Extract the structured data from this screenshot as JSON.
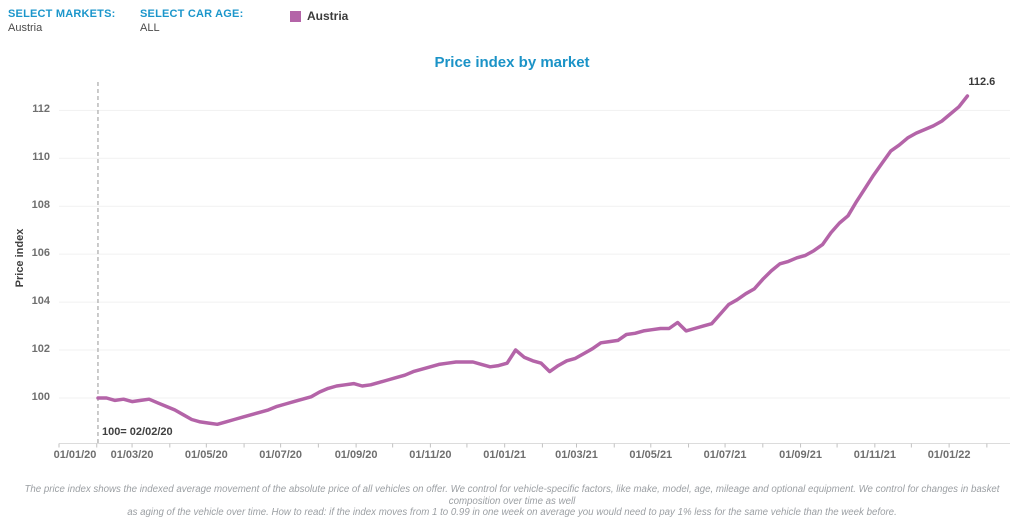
{
  "filters": {
    "markets_label": "SELECT MARKETS:",
    "markets_value": "Austria",
    "car_age_label": "SELECT CAR AGE:",
    "car_age_value": "ALL"
  },
  "legend": {
    "position": "top",
    "items": [
      {
        "label": "Austria",
        "color": "#b464a8"
      }
    ]
  },
  "chart_data": {
    "type": "line",
    "title": "Price index by market",
    "xlabel": "",
    "ylabel": "Price index",
    "grid": "horizontal",
    "ylim": [
      98.1,
      113.1
    ],
    "yticks": [
      100,
      102,
      104,
      106,
      108,
      110,
      112
    ],
    "x_range": [
      "2020-01-01",
      "2022-02-20"
    ],
    "xticks": [
      {
        "date": "2020-01-01",
        "label": "01/01/20"
      },
      {
        "date": "2020-03-01",
        "label": "01/03/20"
      },
      {
        "date": "2020-05-01",
        "label": "01/05/20"
      },
      {
        "date": "2020-07-01",
        "label": "01/07/20"
      },
      {
        "date": "2020-09-01",
        "label": "01/09/20"
      },
      {
        "date": "2020-11-01",
        "label": "01/11/20"
      },
      {
        "date": "2021-01-01",
        "label": "01/01/21"
      },
      {
        "date": "2021-03-01",
        "label": "01/03/21"
      },
      {
        "date": "2021-05-01",
        "label": "01/05/21"
      },
      {
        "date": "2021-07-01",
        "label": "01/07/21"
      },
      {
        "date": "2021-09-01",
        "label": "01/09/21"
      },
      {
        "date": "2021-11-01",
        "label": "01/11/21"
      },
      {
        "date": "2022-01-01",
        "label": "01/01/22"
      }
    ],
    "reference_line": {
      "date": "2020-02-02",
      "annotation": "100= 02/02/20"
    },
    "end_label": "112.6",
    "series": [
      {
        "name": "Austria",
        "color": "#b464a8",
        "points": [
          [
            "2020-02-02",
            100.0
          ],
          [
            "2020-02-09",
            100.0
          ],
          [
            "2020-02-16",
            99.9
          ],
          [
            "2020-02-23",
            99.95
          ],
          [
            "2020-03-01",
            99.85
          ],
          [
            "2020-03-08",
            99.9
          ],
          [
            "2020-03-15",
            99.95
          ],
          [
            "2020-03-22",
            99.8
          ],
          [
            "2020-03-29",
            99.65
          ],
          [
            "2020-04-05",
            99.5
          ],
          [
            "2020-04-12",
            99.3
          ],
          [
            "2020-04-19",
            99.1
          ],
          [
            "2020-04-26",
            99.0
          ],
          [
            "2020-05-03",
            98.95
          ],
          [
            "2020-05-10",
            98.9
          ],
          [
            "2020-05-17",
            99.0
          ],
          [
            "2020-05-24",
            99.1
          ],
          [
            "2020-05-31",
            99.2
          ],
          [
            "2020-06-07",
            99.3
          ],
          [
            "2020-06-14",
            99.4
          ],
          [
            "2020-06-21",
            99.5
          ],
          [
            "2020-06-28",
            99.65
          ],
          [
            "2020-07-05",
            99.75
          ],
          [
            "2020-07-12",
            99.85
          ],
          [
            "2020-07-19",
            99.95
          ],
          [
            "2020-07-26",
            100.05
          ],
          [
            "2020-08-02",
            100.25
          ],
          [
            "2020-08-09",
            100.4
          ],
          [
            "2020-08-16",
            100.5
          ],
          [
            "2020-08-23",
            100.55
          ],
          [
            "2020-08-30",
            100.6
          ],
          [
            "2020-09-06",
            100.5
          ],
          [
            "2020-09-13",
            100.55
          ],
          [
            "2020-09-20",
            100.65
          ],
          [
            "2020-09-27",
            100.75
          ],
          [
            "2020-10-04",
            100.85
          ],
          [
            "2020-10-11",
            100.95
          ],
          [
            "2020-10-18",
            101.1
          ],
          [
            "2020-10-25",
            101.2
          ],
          [
            "2020-11-01",
            101.3
          ],
          [
            "2020-11-08",
            101.4
          ],
          [
            "2020-11-15",
            101.45
          ],
          [
            "2020-11-22",
            101.5
          ],
          [
            "2020-11-29",
            101.5
          ],
          [
            "2020-12-06",
            101.5
          ],
          [
            "2020-12-13",
            101.4
          ],
          [
            "2020-12-20",
            101.3
          ],
          [
            "2020-12-27",
            101.35
          ],
          [
            "2021-01-03",
            101.45
          ],
          [
            "2021-01-10",
            102.0
          ],
          [
            "2021-01-17",
            101.7
          ],
          [
            "2021-01-24",
            101.55
          ],
          [
            "2021-01-31",
            101.45
          ],
          [
            "2021-02-07",
            101.1
          ],
          [
            "2021-02-14",
            101.35
          ],
          [
            "2021-02-21",
            101.55
          ],
          [
            "2021-02-28",
            101.65
          ],
          [
            "2021-03-07",
            101.85
          ],
          [
            "2021-03-14",
            102.05
          ],
          [
            "2021-03-21",
            102.3
          ],
          [
            "2021-03-28",
            102.35
          ],
          [
            "2021-04-04",
            102.4
          ],
          [
            "2021-04-11",
            102.65
          ],
          [
            "2021-04-18",
            102.7
          ],
          [
            "2021-04-25",
            102.8
          ],
          [
            "2021-05-02",
            102.85
          ],
          [
            "2021-05-09",
            102.9
          ],
          [
            "2021-05-16",
            102.9
          ],
          [
            "2021-05-23",
            103.15
          ],
          [
            "2021-05-30",
            102.8
          ],
          [
            "2021-06-06",
            102.9
          ],
          [
            "2021-06-13",
            103.0
          ],
          [
            "2021-06-20",
            103.1
          ],
          [
            "2021-06-27",
            103.5
          ],
          [
            "2021-07-04",
            103.9
          ],
          [
            "2021-07-11",
            104.1
          ],
          [
            "2021-07-18",
            104.35
          ],
          [
            "2021-07-25",
            104.55
          ],
          [
            "2021-08-01",
            104.95
          ],
          [
            "2021-08-08",
            105.3
          ],
          [
            "2021-08-15",
            105.6
          ],
          [
            "2021-08-22",
            105.7
          ],
          [
            "2021-08-29",
            105.85
          ],
          [
            "2021-09-05",
            105.95
          ],
          [
            "2021-09-12",
            106.15
          ],
          [
            "2021-09-19",
            106.4
          ],
          [
            "2021-09-26",
            106.9
          ],
          [
            "2021-10-03",
            107.3
          ],
          [
            "2021-10-10",
            107.6
          ],
          [
            "2021-10-17",
            108.2
          ],
          [
            "2021-10-24",
            108.75
          ],
          [
            "2021-10-31",
            109.3
          ],
          [
            "2021-11-07",
            109.8
          ],
          [
            "2021-11-14",
            110.3
          ],
          [
            "2021-11-21",
            110.55
          ],
          [
            "2021-11-28",
            110.85
          ],
          [
            "2021-12-05",
            111.05
          ],
          [
            "2021-12-12",
            111.2
          ],
          [
            "2021-12-19",
            111.35
          ],
          [
            "2021-12-26",
            111.55
          ],
          [
            "2022-01-02",
            111.85
          ],
          [
            "2022-01-09",
            112.15
          ],
          [
            "2022-01-16",
            112.6
          ]
        ]
      }
    ]
  },
  "footer": {
    "line1": "The price index shows the indexed average movement of the absolute price of all vehicles on offer. We control for vehicle-specific factors, like make, model, age, mileage and optional equipment. We control for changes in basket composition over time as well",
    "line2": "as aging of the vehicle over time. How to read: if the index moves from 1 to 0.99 in one week on average you would need to pay 1% less for the same vehicle than the week before."
  },
  "colors": {
    "accent_blue": "#1b93c7",
    "series_purple": "#b464a8",
    "tick_gray": "#6f6f6f",
    "footer_gray": "#9b9fa3"
  }
}
